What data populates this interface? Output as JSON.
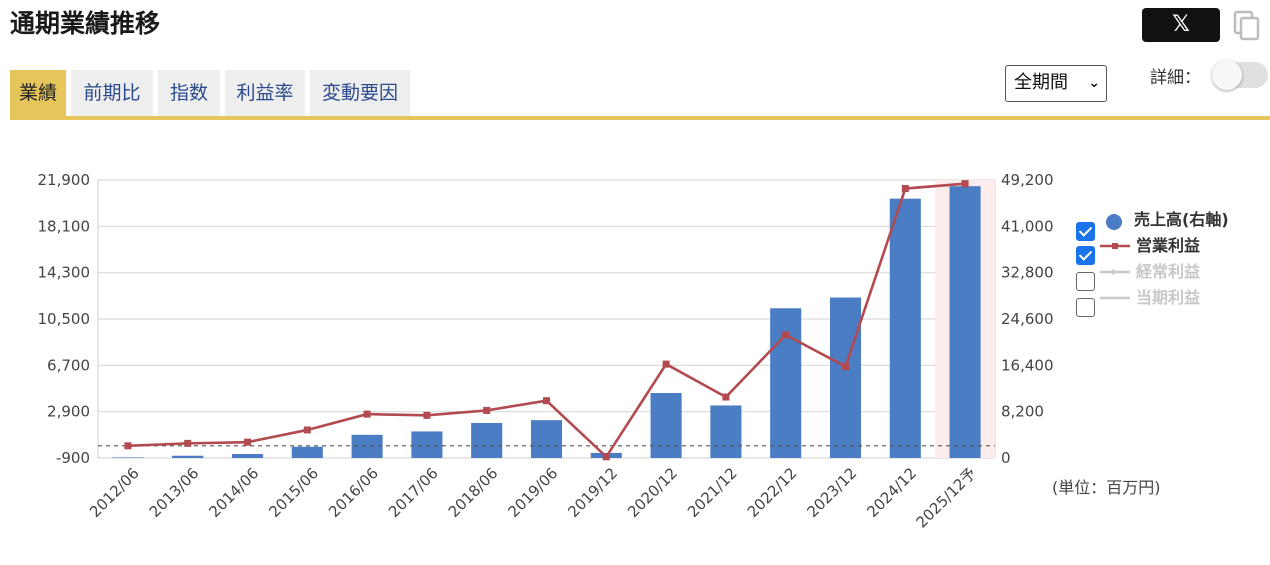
{
  "header": {
    "title": "通期業績推移",
    "share_label": "𝕏",
    "period_select": "全期間",
    "detail_label": "詳細："
  },
  "tabs": [
    {
      "label": "業績",
      "active": true
    },
    {
      "label": "前期比",
      "active": false
    },
    {
      "label": "指数",
      "active": false
    },
    {
      "label": "利益率",
      "active": false
    },
    {
      "label": "変動要因",
      "active": false
    }
  ],
  "legend": [
    {
      "label": "売上高(右軸)",
      "checked": true,
      "color": "#4a7dc4",
      "marker": "dot"
    },
    {
      "label": "営業利益",
      "checked": true,
      "color": "#b24a4f",
      "marker": "line"
    },
    {
      "label": "経常利益",
      "checked": false,
      "color": "#c8c8c8",
      "marker": "line"
    },
    {
      "label": "当期利益",
      "checked": false,
      "color": "#c8c8c8",
      "marker": "line"
    }
  ],
  "unit_label": "(単位：百万円)",
  "colors": {
    "accent": "#e6c55a",
    "bar": "#4a7dc4",
    "line": "#b24a4f",
    "forecast_band": "#fdecec"
  },
  "chart_data": {
    "type": "bar",
    "categories": [
      "2012/06",
      "2013/06",
      "2014/06",
      "2015/06",
      "2016/06",
      "2017/06",
      "2018/06",
      "2019/06",
      "2019/12",
      "2020/12",
      "2021/12",
      "2022/12",
      "2023/12",
      "2024/12",
      "2025/12予"
    ],
    "forecast_index": 14,
    "left_axis": {
      "ticks": [
        "21,900",
        "18,100",
        "14,300",
        "10,500",
        "6,700",
        "2,900",
        "-900"
      ],
      "min": -900,
      "max": 21900
    },
    "right_axis": {
      "ticks": [
        "49,200",
        "41,000",
        "32,800",
        "24,600",
        "16,400",
        "8,200",
        "0"
      ],
      "min": 0,
      "max": 49200
    },
    "series": [
      {
        "name": "売上高(右軸)",
        "axis": "right",
        "type": "bar",
        "values": [
          100,
          400,
          700,
          2000,
          4100,
          4700,
          6200,
          6700,
          900,
          11500,
          9300,
          26500,
          28400,
          45900,
          48100
        ]
      },
      {
        "name": "営業利益",
        "axis": "left",
        "type": "line",
        "values": [
          100,
          300,
          400,
          1400,
          2700,
          2600,
          3000,
          3800,
          -800,
          6800,
          4100,
          9200,
          6600,
          21200,
          21600
        ]
      }
    ],
    "reference_line": {
      "axis": "left",
      "value": 100
    },
    "grid": true
  }
}
